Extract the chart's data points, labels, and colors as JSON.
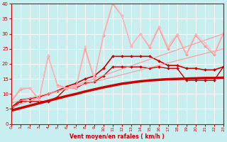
{
  "title": "",
  "xlabel": "Vent moyen/en rafales ( km/h )",
  "ylabel": "",
  "background_color": "#c8eef0",
  "grid_color": "#aaaaaa",
  "xlim": [
    0,
    23
  ],
  "ylim": [
    0,
    40
  ],
  "xticks": [
    0,
    1,
    2,
    3,
    4,
    5,
    6,
    7,
    8,
    9,
    10,
    11,
    12,
    13,
    14,
    15,
    16,
    17,
    18,
    19,
    20,
    21,
    22,
    23
  ],
  "yticks": [
    0,
    5,
    10,
    15,
    20,
    25,
    30,
    35,
    40
  ],
  "series": [
    {
      "x": [
        0,
        1,
        2,
        3,
        4,
        5,
        6,
        7,
        8,
        9,
        10,
        11,
        12,
        13,
        14,
        15,
        16,
        17,
        18,
        19,
        20,
        21,
        22,
        23
      ],
      "y": [
        4.5,
        5.3,
        6.1,
        6.9,
        7.7,
        8.5,
        9.3,
        10.0,
        10.8,
        11.5,
        12.2,
        12.8,
        13.4,
        13.8,
        14.2,
        14.5,
        14.7,
        14.9,
        15.0,
        15.1,
        15.2,
        15.3,
        15.3,
        15.4
      ],
      "color": "#cc0000",
      "lw": 2.5,
      "marker": null,
      "ms": 0
    },
    {
      "x": [
        0,
        1,
        2,
        3,
        4,
        5,
        6,
        7,
        8,
        9,
        10,
        11,
        12,
        13,
        14,
        15,
        16,
        17,
        18,
        19,
        20,
        21,
        22,
        23
      ],
      "y": [
        5.0,
        7.5,
        7.5,
        7.5,
        7.5,
        9.0,
        12.0,
        12.0,
        13.5,
        14.0,
        16.0,
        19.0,
        19.0,
        19.0,
        19.0,
        18.5,
        19.0,
        18.5,
        18.5,
        14.5,
        14.5,
        14.5,
        14.5,
        19.0
      ],
      "color": "#cc0000",
      "lw": 1.0,
      "marker": "D",
      "ms": 2.0
    },
    {
      "x": [
        0,
        1,
        2,
        3,
        4,
        5,
        6,
        7,
        8,
        9,
        10,
        11,
        12,
        13,
        14,
        15,
        16,
        17,
        18,
        19,
        20,
        21,
        22,
        23
      ],
      "y": [
        5.5,
        8.0,
        8.5,
        9.0,
        10.0,
        11.0,
        12.5,
        13.5,
        15.0,
        16.0,
        18.5,
        22.5,
        22.5,
        22.5,
        22.5,
        22.5,
        21.0,
        19.5,
        19.5,
        18.5,
        18.5,
        18.0,
        18.0,
        19.0
      ],
      "color": "#cc0000",
      "lw": 1.2,
      "marker": "D",
      "ms": 2.0
    },
    {
      "x": [
        0,
        23
      ],
      "y": [
        5.5,
        30.0
      ],
      "color": "#ff9999",
      "lw": 0.8,
      "marker": null,
      "ms": 0
    },
    {
      "x": [
        0,
        23
      ],
      "y": [
        7.0,
        25.0
      ],
      "color": "#ff9999",
      "lw": 0.8,
      "marker": null,
      "ms": 0
    },
    {
      "x": [
        0,
        1,
        2,
        3,
        4,
        5,
        6,
        7,
        8,
        9,
        10,
        11,
        12,
        13,
        14,
        15,
        16,
        17,
        18,
        19,
        20,
        21,
        22,
        23
      ],
      "y": [
        7.5,
        11.5,
        12.0,
        8.0,
        22.5,
        13.0,
        12.0,
        12.0,
        25.0,
        15.0,
        29.5,
        40.0,
        36.0,
        26.0,
        30.0,
        25.5,
        32.0,
        25.0,
        29.5,
        23.0,
        29.5,
        26.0,
        23.0,
        30.0
      ],
      "color": "#ff9999",
      "lw": 1.0,
      "marker": "D",
      "ms": 2.0
    },
    {
      "x": [
        0,
        1,
        2,
        3,
        4,
        5,
        6,
        7,
        8,
        9,
        10,
        11,
        12,
        13,
        14,
        15,
        16,
        17,
        18,
        19,
        20,
        21,
        22,
        23
      ],
      "y": [
        8.0,
        12.0,
        12.0,
        8.5,
        23.0,
        12.5,
        12.0,
        12.0,
        26.0,
        15.5,
        30.0,
        40.5,
        36.0,
        26.0,
        30.0,
        26.0,
        32.5,
        26.0,
        30.0,
        23.5,
        30.0,
        27.0,
        23.5,
        30.5
      ],
      "color": "#ffbbbb",
      "lw": 0.8,
      "marker": "D",
      "ms": 1.5
    }
  ]
}
